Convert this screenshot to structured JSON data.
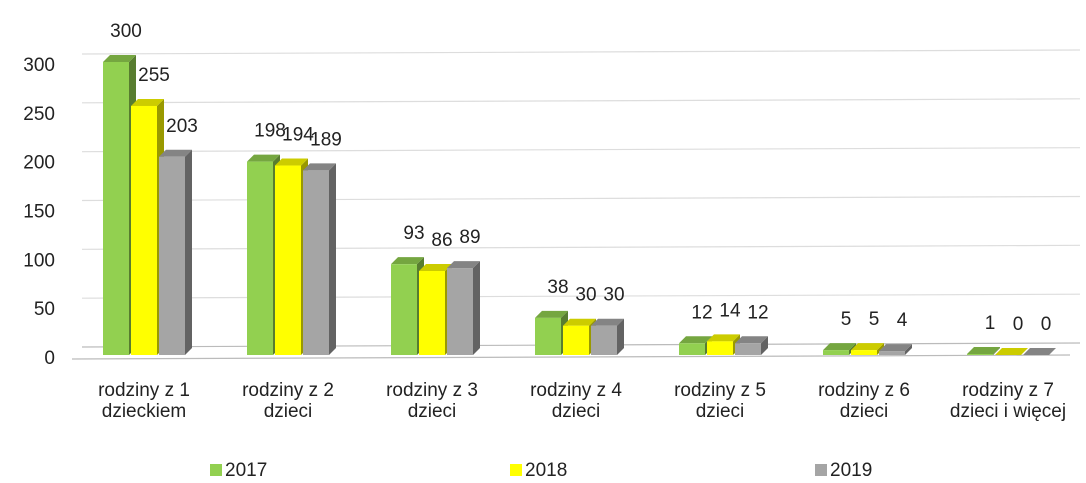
{
  "chart_data": {
    "type": "bar",
    "categories": [
      "rodziny z 1 dzieckiem",
      "rodziny z 2 dzieci",
      "rodziny z 3 dzieci",
      "rodziny z 4 dzieci",
      "rodziny z 5 dzieci",
      "rodziny z 6 dzieci",
      "rodziny z 7 dzieci i więcej"
    ],
    "series": [
      {
        "name": "2017",
        "color": "#92d050",
        "values": [
          300,
          198,
          93,
          38,
          12,
          5,
          1
        ]
      },
      {
        "name": "2018",
        "color": "#ffff00",
        "values": [
          255,
          194,
          86,
          30,
          14,
          5,
          0
        ]
      },
      {
        "name": "2019",
        "color": "#a5a5a5",
        "values": [
          203,
          189,
          89,
          30,
          12,
          4,
          0
        ]
      }
    ],
    "ylim": [
      0,
      300
    ],
    "yticks": [
      0,
      50,
      100,
      150,
      200,
      250,
      300
    ],
    "grid": true,
    "legend": "bottom"
  }
}
